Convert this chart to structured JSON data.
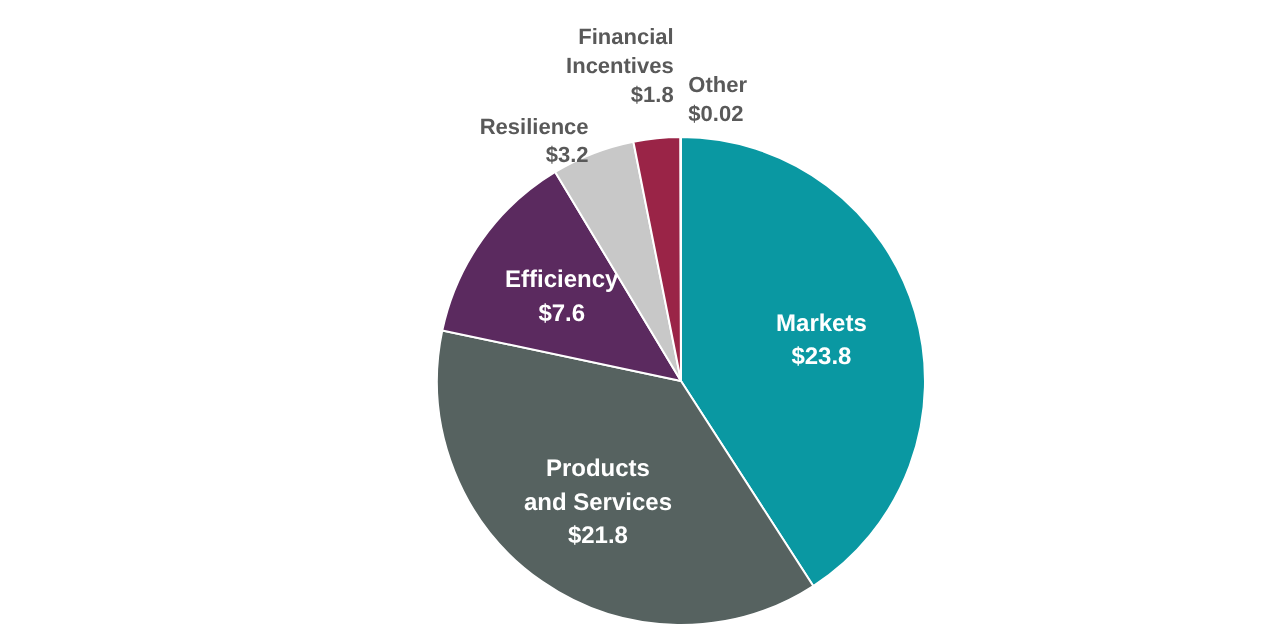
{
  "chart_data": {
    "type": "pie",
    "categories": [
      "Markets",
      "Products and Services",
      "Efficiency",
      "Resilience",
      "Financial Incentives",
      "Other"
    ],
    "values": [
      23.8,
      21.8,
      7.6,
      3.2,
      1.8,
      0.02
    ],
    "colors": [
      "#0a98a2",
      "#566260",
      "#5b2a5f",
      "#c8c8c8",
      "#9a2447",
      "#d4486a"
    ],
    "value_labels": [
      "$23.8",
      "$21.8",
      "$7.6",
      "$3.2",
      "$1.8",
      "$0.02"
    ]
  }
}
